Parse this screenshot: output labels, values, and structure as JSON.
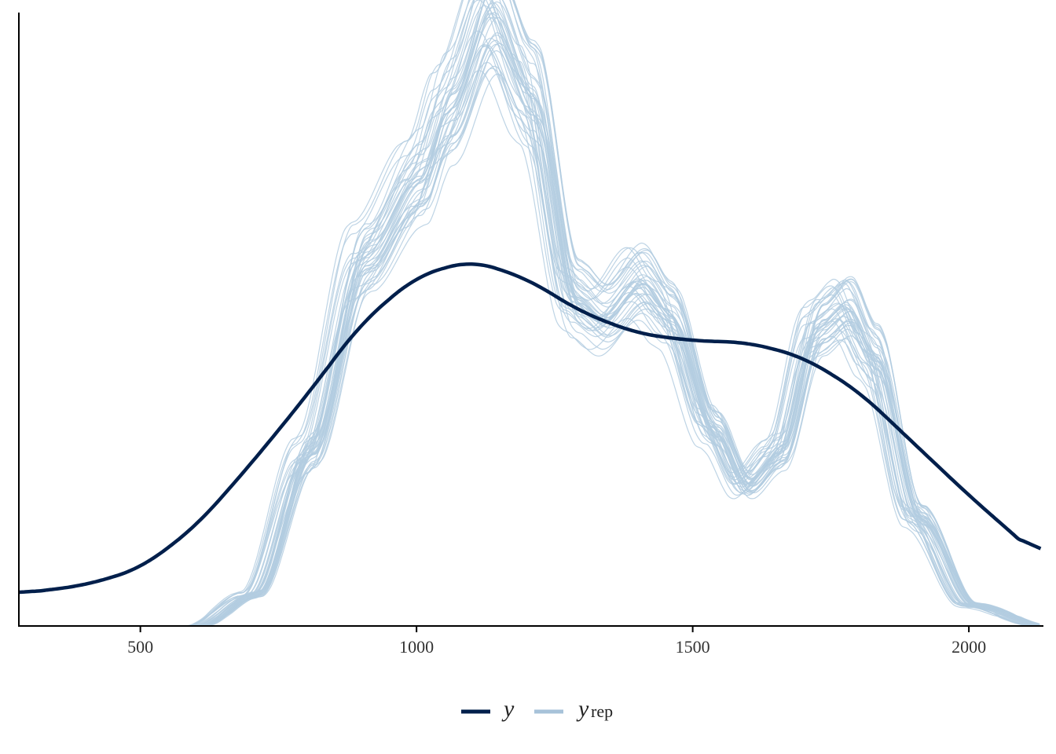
{
  "chart_data": {
    "type": "line",
    "title": "",
    "xlabel": "",
    "ylabel": "",
    "xlim": [
      280,
      2135
    ],
    "ylim": [
      0,
      1
    ],
    "x_ticks": [
      "500",
      "1000",
      "1500",
      "2000"
    ],
    "y_ticks": [],
    "grid": false,
    "legend": {
      "position": "bottom",
      "entries": [
        "y",
        "y",
        "rep"
      ]
    },
    "colors": {
      "y": "#011f4b",
      "yrep": "#b3cde0"
    },
    "series": [
      {
        "name": "y",
        "values": [
          {
            "x": 280,
            "y": 0.062
          },
          {
            "x": 400,
            "y": 0.078
          },
          {
            "x": 500,
            "y": 0.11
          },
          {
            "x": 600,
            "y": 0.19
          },
          {
            "x": 700,
            "y": 0.31
          },
          {
            "x": 800,
            "y": 0.44
          },
          {
            "x": 900,
            "y": 0.58
          },
          {
            "x": 1000,
            "y": 0.67
          },
          {
            "x": 1100,
            "y": 0.7
          },
          {
            "x": 1200,
            "y": 0.665
          },
          {
            "x": 1300,
            "y": 0.6
          },
          {
            "x": 1400,
            "y": 0.56
          },
          {
            "x": 1500,
            "y": 0.546
          },
          {
            "x": 1600,
            "y": 0.543
          },
          {
            "x": 1700,
            "y": 0.515
          },
          {
            "x": 1800,
            "y": 0.45
          },
          {
            "x": 1900,
            "y": 0.35
          },
          {
            "x": 2000,
            "y": 0.25
          },
          {
            "x": 2135,
            "y": 0.125
          }
        ]
      },
      {
        "name": "y_rep",
        "draws": 40,
        "values": [
          {
            "x": 600,
            "y": 0.0
          },
          {
            "x": 700,
            "y": 0.06
          },
          {
            "x": 800,
            "y": 0.33
          },
          {
            "x": 900,
            "y": 0.7
          },
          {
            "x": 1000,
            "y": 0.85
          },
          {
            "x": 1050,
            "y": 0.98
          },
          {
            "x": 1130,
            "y": 1.17
          },
          {
            "x": 1200,
            "y": 1.02
          },
          {
            "x": 1280,
            "y": 0.63
          },
          {
            "x": 1330,
            "y": 0.59
          },
          {
            "x": 1400,
            "y": 0.66
          },
          {
            "x": 1450,
            "y": 0.6
          },
          {
            "x": 1530,
            "y": 0.38
          },
          {
            "x": 1590,
            "y": 0.27
          },
          {
            "x": 1650,
            "y": 0.33
          },
          {
            "x": 1720,
            "y": 0.57
          },
          {
            "x": 1770,
            "y": 0.61
          },
          {
            "x": 1820,
            "y": 0.52
          },
          {
            "x": 1900,
            "y": 0.21
          },
          {
            "x": 2000,
            "y": 0.04
          },
          {
            "x": 2135,
            "y": 0.0
          }
        ]
      }
    ]
  }
}
